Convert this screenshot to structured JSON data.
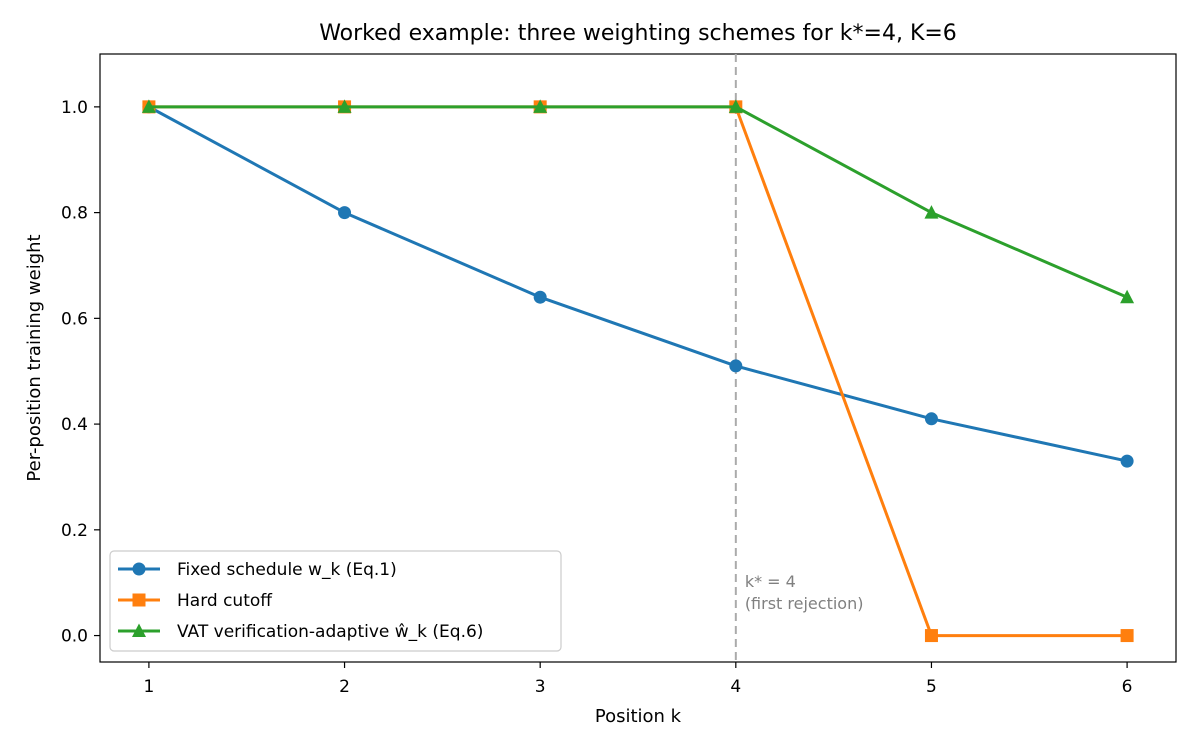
{
  "chart_data": {
    "type": "line",
    "title": "Worked example: three weighting schemes for k*=4, K=6",
    "xlabel": "Position k",
    "ylabel": "Per-position training weight",
    "xlim": [
      0.75,
      6.25
    ],
    "ylim": [
      -0.05,
      1.1
    ],
    "x": [
      1,
      2,
      3,
      4,
      5,
      6
    ],
    "xticks": [
      "1",
      "2",
      "3",
      "4",
      "5",
      "6"
    ],
    "yticks": [
      "0.0",
      "0.2",
      "0.4",
      "0.6",
      "0.8",
      "1.0"
    ],
    "grid": false,
    "legend_position": "lower-left",
    "series": [
      {
        "name": "Fixed schedule w_k (Eq.1)",
        "values": [
          1.0,
          0.8,
          0.64,
          0.51,
          0.41,
          0.33
        ],
        "color": "#1f77b4",
        "marker": "circle"
      },
      {
        "name": "Hard cutoff",
        "values": [
          1.0,
          1.0,
          1.0,
          1.0,
          0.0,
          0.0
        ],
        "color": "#ff7f0e",
        "marker": "square"
      },
      {
        "name": "VAT verification-adaptive ŵ_k (Eq.6)",
        "values": [
          1.0,
          1.0,
          1.0,
          1.0,
          0.8,
          0.64
        ],
        "color": "#2ca02c",
        "marker": "triangle"
      }
    ],
    "vline": {
      "x": 4,
      "color": "#aaaaaa",
      "label_line1": "k* = 4",
      "label_line2": "(first rejection)"
    }
  }
}
